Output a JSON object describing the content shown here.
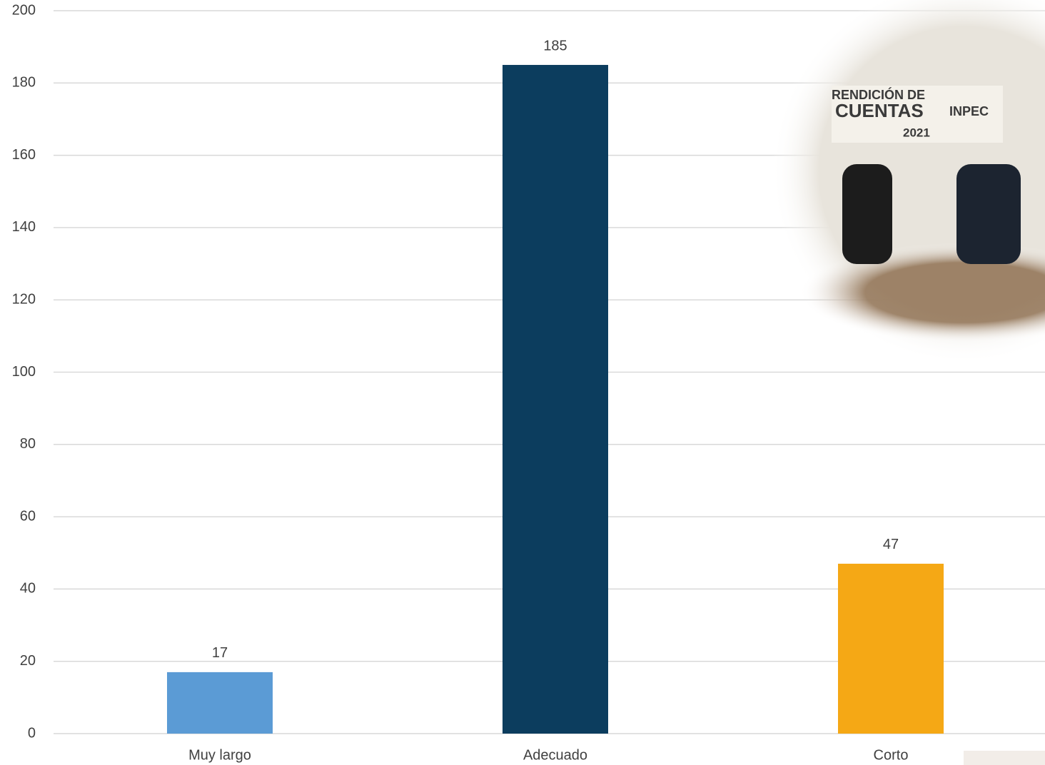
{
  "chart_data": {
    "type": "bar",
    "categories": [
      "Muy largo",
      "Adecuado",
      "Corto"
    ],
    "values": [
      17,
      185,
      47
    ],
    "colors": [
      "#5b9bd5",
      "#0c3d5e",
      "#f5a815"
    ],
    "ylim": [
      0,
      200
    ],
    "yticks": [
      0,
      20,
      40,
      60,
      80,
      100,
      120,
      140,
      160,
      180,
      200
    ],
    "grid": true
  },
  "photo": {
    "lines": [
      "RENDICIÓN DE",
      "CUENTAS",
      "INPEC",
      "2021"
    ]
  }
}
